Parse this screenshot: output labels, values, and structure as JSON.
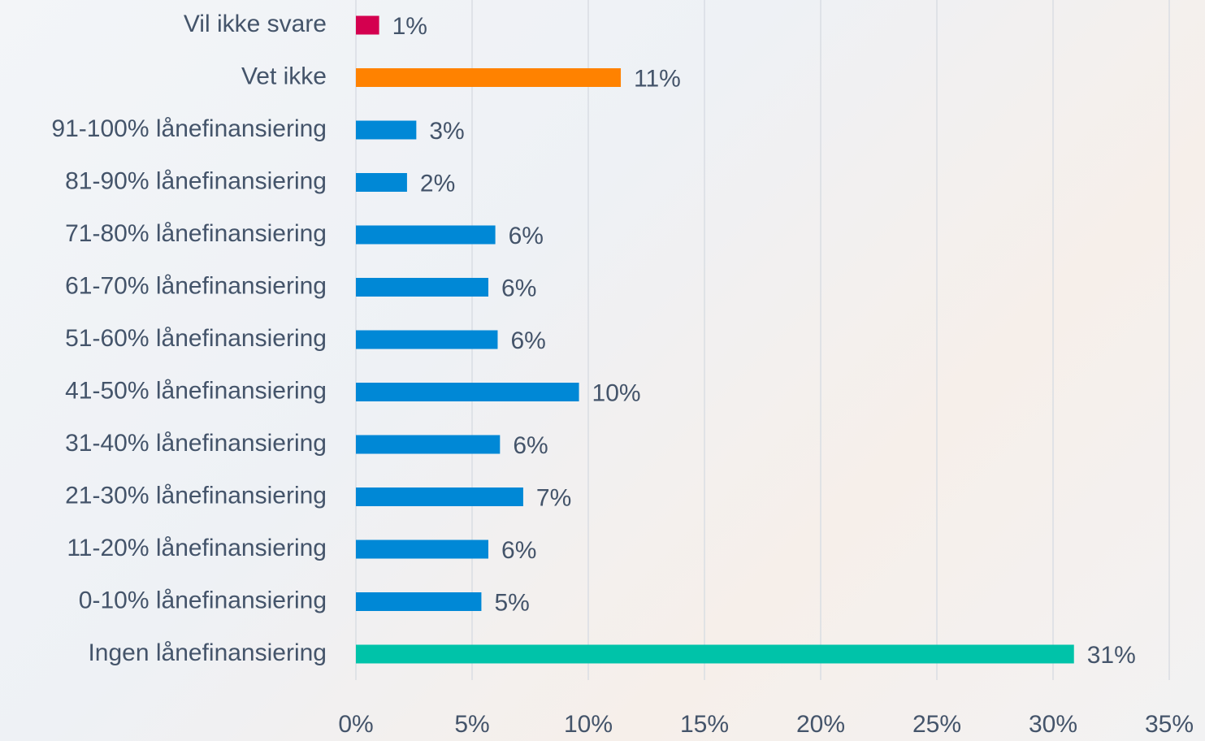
{
  "chart_data": {
    "type": "barh",
    "categories": [
      "Vil ikke svare",
      "Vet ikke",
      "91-100% lånefinansiering",
      "81-90% lånefinansiering",
      "71-80% lånefinansiering",
      "61-70% lånefinansiering",
      "51-60% lånefinansiering",
      "41-50% lånefinansiering",
      "31-40% lånefinansiering",
      "21-30% lånefinansiering",
      "11-20% lånefinansiering",
      "0-10% lånefinansiering",
      "Ingen lånefinansiering"
    ],
    "values": [
      1.0,
      11.4,
      2.6,
      2.2,
      6.0,
      5.7,
      6.1,
      9.6,
      6.2,
      7.2,
      5.7,
      5.4,
      30.9
    ],
    "value_labels": [
      "1%",
      "11%",
      "3%",
      "2%",
      "6%",
      "6%",
      "6%",
      "10%",
      "6%",
      "7%",
      "6%",
      "5%",
      "31%"
    ],
    "colors": [
      "#d4004f",
      "#ff8200",
      "#0088d6",
      "#0088d6",
      "#0088d6",
      "#0088d6",
      "#0088d6",
      "#0088d6",
      "#0088d6",
      "#0088d6",
      "#0088d6",
      "#0088d6",
      "#00c3a9"
    ],
    "xlim": [
      0,
      35
    ],
    "xticks": [
      {
        "value": 0,
        "label": "0%"
      },
      {
        "value": 5,
        "label": "5%"
      },
      {
        "value": 10,
        "label": "10%"
      },
      {
        "value": 15,
        "label": "15%"
      },
      {
        "value": 20,
        "label": "20%"
      },
      {
        "value": 25,
        "label": "25%"
      },
      {
        "value": 30,
        "label": "30%"
      },
      {
        "value": 35,
        "label": "35%"
      }
    ],
    "grid": true
  }
}
